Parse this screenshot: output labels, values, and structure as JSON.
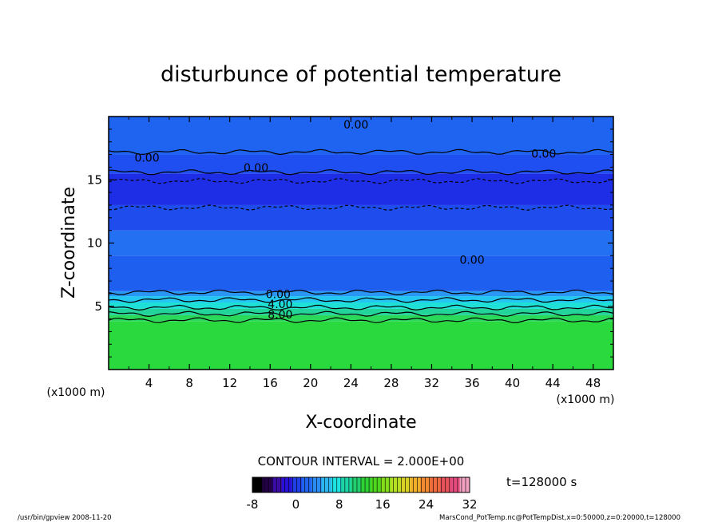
{
  "chart_data": {
    "type": "heatmap",
    "title": "disturbunce of potential temperature",
    "xlabel": "X-coordinate",
    "ylabel": "Z-coordinate",
    "x_unit_label": "(x1000 m)",
    "y_unit_label": "(x1000 m)",
    "xlim": [
      0,
      50
    ],
    "ylim": [
      0,
      20
    ],
    "x_ticks": [
      4,
      8,
      12,
      16,
      20,
      24,
      28,
      32,
      36,
      40,
      44,
      48
    ],
    "y_ticks": [
      5,
      10,
      15
    ],
    "contour_interval_text": "CONTOUR INTERVAL = 2.000E+00",
    "time_text": "t=128000 s",
    "colorbar": {
      "range": [
        -8,
        32
      ],
      "ticks": [
        "-8",
        "0",
        "8",
        "16",
        "24",
        "32"
      ],
      "colors": [
        "#000000",
        "#240046",
        "#3a0ca3",
        "#2810d8",
        "#1f3ee6",
        "#1f63ee",
        "#2a8cf2",
        "#2cb6f0",
        "#1ee3e3",
        "#1cd6a8",
        "#22cf6e",
        "#2ed134",
        "#4fd61e",
        "#83dd1b",
        "#b4df22",
        "#d9d025",
        "#f0ae2a",
        "#f28a2f",
        "#ef6a3c",
        "#e8525a",
        "#e64d7e",
        "#f0a0c0"
      ]
    },
    "layers": [
      {
        "z": [
          0,
          3.8
        ],
        "value": 9,
        "color": "#29d93d"
      },
      {
        "z": [
          3.8,
          4.3
        ],
        "value": 7,
        "color": "#2ad85a"
      },
      {
        "z": [
          4.3,
          4.8
        ],
        "value": 5,
        "color": "#22d39a"
      },
      {
        "z": [
          4.8,
          5.3
        ],
        "value": 3,
        "color": "#1fe0d6"
      },
      {
        "z": [
          5.3,
          5.8
        ],
        "value": 2,
        "color": "#23c7f2"
      },
      {
        "z": [
          5.8,
          6.2
        ],
        "value": 1,
        "color": "#2b97f4"
      },
      {
        "z": [
          6.2,
          9.0
        ],
        "value": 0,
        "color": "#1f5ff0"
      },
      {
        "z": [
          9.0,
          11.0
        ],
        "value": 0,
        "color": "#2470f2"
      },
      {
        "z": [
          11.0,
          13.0
        ],
        "value": -1,
        "color": "#1f4ded"
      },
      {
        "z": [
          13.0,
          15.5
        ],
        "value": -2,
        "color": "#1e2ee6"
      },
      {
        "z": [
          15.5,
          17.0
        ],
        "value": -1,
        "color": "#1f4ff0"
      },
      {
        "z": [
          17.0,
          20.0
        ],
        "value": 0,
        "color": "#1f63f1"
      }
    ],
    "contour_labels": [
      {
        "text": "0.00",
        "x": 24.5,
        "z": 19.3
      },
      {
        "text": "0.00",
        "x": 3.8,
        "z": 16.7
      },
      {
        "text": "0.00",
        "x": 14.6,
        "z": 15.9
      },
      {
        "text": "0.00",
        "x": 43.1,
        "z": 17.0
      },
      {
        "text": "0.00",
        "x": 36.0,
        "z": 8.6
      },
      {
        "text": "0.00",
        "x": 16.8,
        "z": 5.9
      },
      {
        "text": "4.00",
        "x": 17.0,
        "z": 5.1
      },
      {
        "text": "8.00",
        "x": 17.0,
        "z": 4.3
      }
    ],
    "contour_lines": [
      {
        "value": 8,
        "z": 3.9,
        "style": "solid"
      },
      {
        "value": 6,
        "z": 4.4,
        "style": "solid"
      },
      {
        "value": 4,
        "z": 4.9,
        "style": "solid"
      },
      {
        "value": 2,
        "z": 5.5,
        "style": "solid"
      },
      {
        "value": 0,
        "z": 6.1,
        "style": "solid"
      },
      {
        "value": -2,
        "z": 12.8,
        "style": "dashed"
      },
      {
        "value": -2,
        "z": 14.9,
        "style": "dashed"
      },
      {
        "value": 0,
        "z": 15.6,
        "style": "solid"
      },
      {
        "value": 0,
        "z": 17.2,
        "style": "solid"
      }
    ],
    "grid": false,
    "legend": "colorbar bottom-center"
  },
  "footer": {
    "left": "/usr/bin/gpview   2008-11-20",
    "right": "MarsCond_PotTemp.nc@PotTempDist,x=0:50000,z=0:20000,t=128000"
  }
}
